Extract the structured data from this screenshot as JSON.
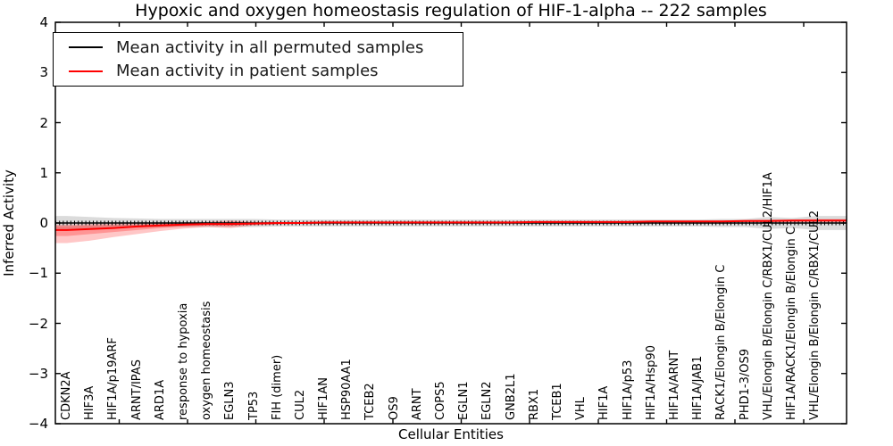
{
  "chart_data": {
    "type": "line",
    "title": "Hypoxic and oxygen homeostasis regulation of HIF-1-alpha -- 222 samples",
    "xlabel": "Cellular Entities",
    "ylabel": "Inferred Activity",
    "ylim": [
      -4,
      4
    ],
    "yticks": [
      -4,
      -3,
      -2,
      -1,
      0,
      1,
      2,
      3,
      4
    ],
    "grid": false,
    "legend_position": "upper left",
    "background": "#ffffff",
    "axis_color": "#000000",
    "categories": [
      "CDKN2A",
      "HIF3A",
      "HIF1A/p19ARF",
      "ARNT/IPAS",
      "ARD1A",
      "response to hypoxia",
      "oxygen homeostasis",
      "EGLN3",
      "TP53",
      "FIH (dimer)",
      "CUL2",
      "HIF1AN",
      "HSP90AA1",
      "TCEB2",
      "OS9",
      "ARNT",
      "COPS5",
      "EGLN1",
      "EGLN2",
      "GNB2L1",
      "RBX1",
      "TCEB1",
      "VHL",
      "HIF1A",
      "HIF1A/p53",
      "HIF1A/Hsp90",
      "HIF1A/ARNT",
      "HIF1A/JAB1",
      "RACK1/Elongin B/Elongin C",
      "PHD1-3/OS9",
      "VHL/Elongin B/Elongin C/RBX1/CUL2/HIF1A",
      "HIF1A/RACK1/Elongin B/Elongin C",
      "VHL/Elongin B/Elongin C/RBX1/CUL2"
    ],
    "series": [
      {
        "name": "Mean activity in all permuted samples",
        "color": "#000000",
        "style": "solid-with-tick-markers",
        "values": [
          0,
          0,
          0,
          0,
          0,
          0,
          0,
          0,
          0,
          0,
          0,
          0,
          0,
          0,
          0,
          0,
          0,
          0,
          0,
          0,
          0,
          0,
          0,
          0,
          0,
          0,
          0,
          0,
          0,
          0,
          0,
          0,
          0
        ]
      },
      {
        "name": "Mean activity in patient samples",
        "color": "#ff0000",
        "style": "solid",
        "values": [
          -0.14,
          -0.12,
          -0.1,
          -0.07,
          -0.05,
          -0.03,
          -0.02,
          -0.02,
          -0.01,
          0.0,
          0.0,
          0.01,
          0.01,
          0.01,
          0.01,
          0.01,
          0.01,
          0.01,
          0.01,
          0.01,
          0.02,
          0.02,
          0.02,
          0.02,
          0.02,
          0.03,
          0.03,
          0.03,
          0.03,
          0.04,
          0.04,
          0.05,
          0.05
        ]
      }
    ],
    "bands": [
      {
        "name": "permuted-samples-spread-band",
        "color": "#999999",
        "opacity": 0.35,
        "upper": [
          0.14,
          0.12,
          0.1,
          0.09,
          0.08,
          0.08,
          0.08,
          0.08,
          0.08,
          0.07,
          0.07,
          0.07,
          0.07,
          0.07,
          0.07,
          0.07,
          0.07,
          0.07,
          0.07,
          0.07,
          0.07,
          0.07,
          0.07,
          0.07,
          0.07,
          0.07,
          0.07,
          0.07,
          0.08,
          0.08,
          0.12,
          0.1,
          0.14
        ],
        "lower": [
          -0.14,
          -0.12,
          -0.1,
          -0.09,
          -0.08,
          -0.08,
          -0.08,
          -0.08,
          -0.08,
          -0.07,
          -0.07,
          -0.07,
          -0.07,
          -0.07,
          -0.07,
          -0.07,
          -0.07,
          -0.07,
          -0.07,
          -0.07,
          -0.07,
          -0.07,
          -0.07,
          -0.07,
          -0.07,
          -0.07,
          -0.07,
          -0.07,
          -0.08,
          -0.08,
          -0.12,
          -0.1,
          -0.14
        ]
      },
      {
        "name": "patient-samples-spread-outer-band",
        "color": "#ff0000",
        "opacity": 0.22,
        "upper": [
          -0.03,
          -0.02,
          -0.01,
          0.0,
          0.01,
          0.01,
          0.02,
          0.05,
          0.02,
          0.02,
          0.02,
          0.02,
          0.02,
          0.02,
          0.02,
          0.02,
          0.02,
          0.02,
          0.02,
          0.02,
          0.03,
          0.03,
          0.03,
          0.03,
          0.03,
          0.04,
          0.04,
          0.05,
          0.05,
          0.06,
          0.07,
          0.07,
          0.08
        ],
        "lower": [
          -0.4,
          -0.35,
          -0.28,
          -0.22,
          -0.16,
          -0.11,
          -0.08,
          -0.1,
          -0.05,
          -0.03,
          -0.02,
          -0.01,
          -0.01,
          -0.01,
          -0.01,
          -0.01,
          -0.01,
          -0.01,
          -0.01,
          -0.01,
          0.0,
          0.0,
          0.0,
          0.0,
          0.0,
          0.01,
          0.01,
          0.01,
          0.01,
          0.02,
          0.02,
          0.02,
          0.02
        ]
      },
      {
        "name": "patient-samples-spread-inner-band",
        "color": "#ff0000",
        "opacity": 0.25,
        "upper": [
          -0.06,
          -0.05,
          -0.04,
          -0.03,
          -0.01,
          0.0,
          0.0,
          0.02,
          0.01,
          0.01,
          0.01,
          0.01,
          0.01,
          0.01,
          0.01,
          0.01,
          0.01,
          0.01,
          0.01,
          0.01,
          0.02,
          0.02,
          0.02,
          0.02,
          0.02,
          0.03,
          0.03,
          0.04,
          0.04,
          0.05,
          0.05,
          0.06,
          0.06
        ],
        "lower": [
          -0.26,
          -0.22,
          -0.18,
          -0.14,
          -0.1,
          -0.07,
          -0.05,
          -0.06,
          -0.03,
          -0.02,
          -0.01,
          0.0,
          0.0,
          0.0,
          0.0,
          0.0,
          0.0,
          0.0,
          0.0,
          0.0,
          0.01,
          0.01,
          0.01,
          0.01,
          0.01,
          0.02,
          0.02,
          0.02,
          0.02,
          0.03,
          0.03,
          0.03,
          0.04
        ]
      }
    ]
  }
}
